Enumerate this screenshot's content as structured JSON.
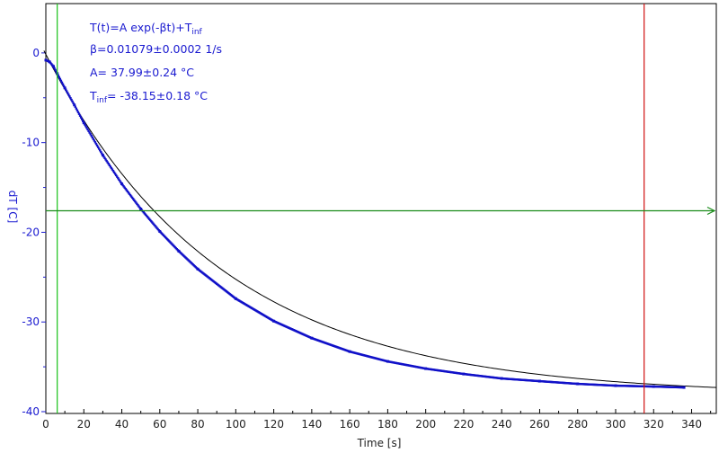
{
  "chart_data": {
    "type": "scatter",
    "xlabel": "Time [s]",
    "ylabel": "dT [C]",
    "xlim": [
      0,
      353
    ],
    "ylim": [
      -40.2,
      5.5
    ],
    "x_ticks": [
      0,
      20,
      40,
      60,
      80,
      100,
      120,
      140,
      160,
      180,
      200,
      220,
      240,
      260,
      280,
      300,
      320,
      340
    ],
    "y_ticks": [
      0,
      -10,
      -20,
      -30,
      -40
    ],
    "x_tick_labels": [
      "0",
      "20",
      "40",
      "60",
      "80",
      "100",
      "120",
      "140",
      "160",
      "180",
      "200",
      "220",
      "240",
      "260",
      "280",
      "300",
      "320",
      "340"
    ],
    "y_tick_labels": [
      "0",
      "-10",
      "-20",
      "-30",
      "-40"
    ],
    "grid": false,
    "fit": {
      "formula": "T(t)=A exp(-βt)+T",
      "formula_sub": "inf",
      "beta_line": "β=0.01079±0.0002 1/s",
      "a_line": "A= 37.99±0.24 °C",
      "tinf_label": "T",
      "tinf_sub": "inf",
      "tinf_value": "= -38.15±0.18 °C",
      "A": 37.99,
      "beta": 0.01079,
      "T_inf": -38.15
    },
    "series": [
      {
        "color": "#1010c8",
        "x": [
          0,
          2,
          4,
          6,
          10,
          15,
          20,
          30,
          40,
          50,
          60,
          70,
          80,
          100,
          120,
          140,
          160,
          180,
          200,
          220,
          240,
          260,
          280,
          300,
          320,
          336
        ],
        "y": [
          -0.8,
          -1.0,
          -1.5,
          -2.3,
          -3.9,
          -5.8,
          -7.8,
          -11.4,
          -14.6,
          -17.4,
          -19.9,
          -22.1,
          -24.1,
          -27.4,
          -29.9,
          -31.8,
          -33.3,
          -34.4,
          -35.2,
          -35.8,
          -36.3,
          -36.6,
          -36.9,
          -37.1,
          -37.2,
          -37.3
        ]
      }
    ],
    "cursors": {
      "vertical_green_x": 6,
      "vertical_red_x": 315,
      "horizontal_green_y": -17.6
    },
    "colors": {
      "data": "#1010c8",
      "fit": "#000000",
      "green_cursor": "#19c019",
      "red_cursor": "#d01010",
      "h_cursor": "#1a8c1a",
      "axis_text": "#1a1ad0"
    }
  }
}
